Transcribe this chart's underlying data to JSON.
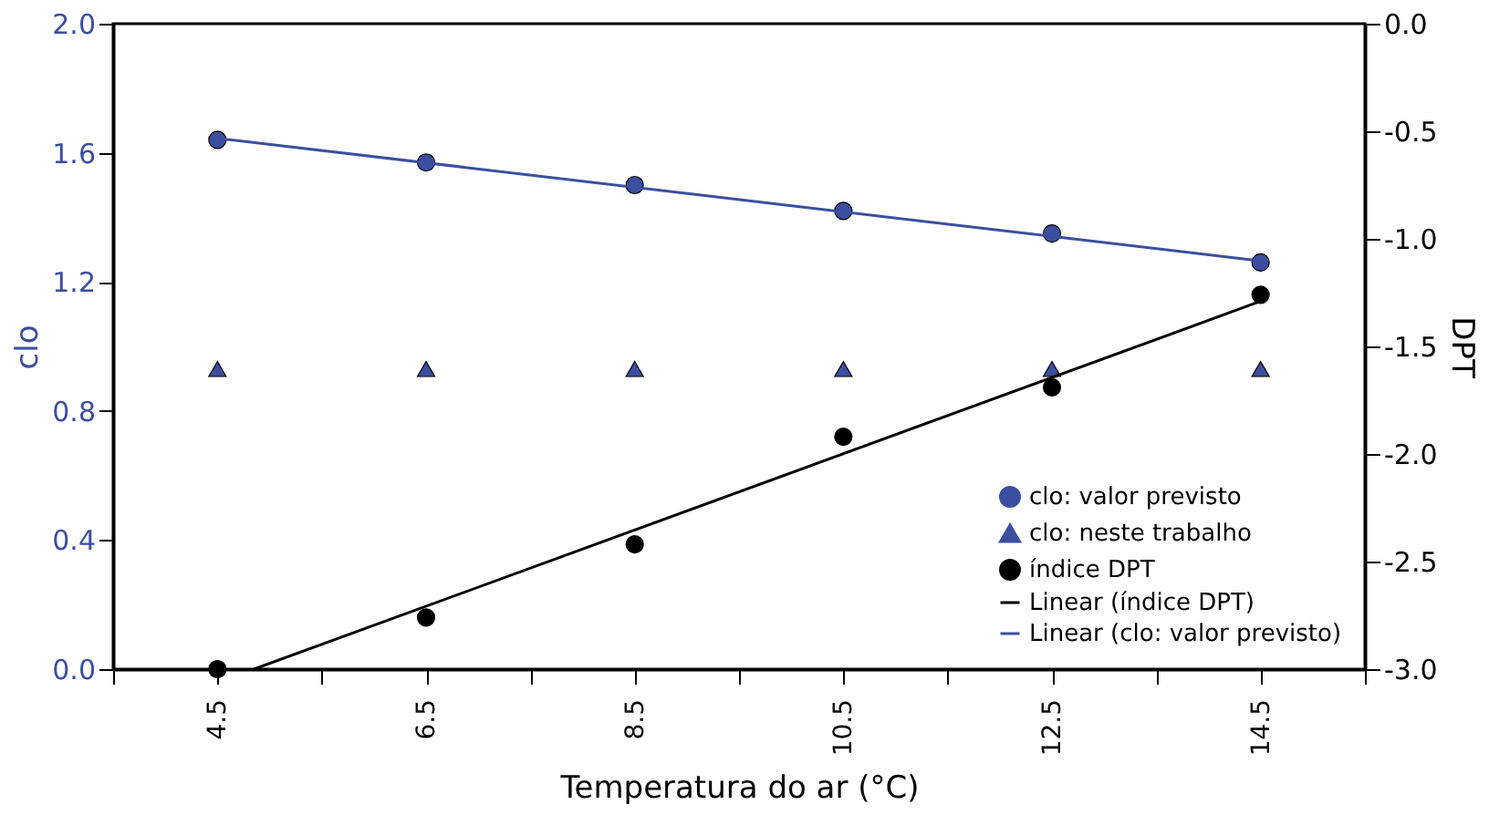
{
  "chart_data": {
    "type": "scatter",
    "xlabel": "Temperatura do ar (°C)",
    "ylabel": "clo",
    "y2label": "DPT",
    "xlim": [
      3.5,
      15.5
    ],
    "xticks": [
      {
        "value": 3.5,
        "label": null
      },
      4.5,
      {
        "value": 5.5,
        "label": null
      },
      6.5,
      {
        "value": 7.5,
        "label": null
      },
      8.5,
      {
        "value": 9.5,
        "label": null
      },
      10.5,
      {
        "value": 11.5,
        "label": null
      },
      12.5,
      {
        "value": 13.5,
        "label": null
      },
      14.5,
      {
        "value": 15.5,
        "label": null
      }
    ],
    "ylim": [
      0,
      2
    ],
    "yticks": [
      {
        "value": 0,
        "label": "0.0"
      },
      0.4,
      0.8,
      1.2,
      1.6,
      {
        "value": 2,
        "label": "2.0"
      }
    ],
    "y2lim": [
      -3,
      0
    ],
    "y2ticks": [
      {
        "value": -3,
        "label": "-3.0"
      },
      -2.5,
      {
        "value": -2,
        "label": "-2.0"
      },
      -1.5,
      {
        "value": -1,
        "label": "-1.0"
      },
      -0.5,
      {
        "value": 0,
        "label": "0.0"
      }
    ],
    "grid": false,
    "legend": "bottom right",
    "series": [
      {
        "name": "clo: valor previsto",
        "marker": "circle",
        "color": "#3b4ea0",
        "x": [
          4.5,
          6.5,
          8.5,
          10.5,
          12.5,
          14.5
        ],
        "values": [
          1.64,
          1.57,
          1.5,
          1.42,
          1.35,
          1.26
        ]
      },
      {
        "name": "clo: neste trabalho",
        "marker": "triangle",
        "color": "#3b4ea0",
        "x": [
          4.5,
          6.5,
          8.5,
          10.5,
          12.5,
          14.5
        ],
        "values": [
          0.93,
          0.93,
          0.93,
          0.93,
          0.93,
          0.93
        ]
      },
      {
        "name": "índice DPT",
        "marker": "circle",
        "color": "#000000",
        "axis": "y2",
        "x": [
          4.5,
          6.5,
          8.5,
          10.5,
          12.5,
          14.5
        ],
        "values": [
          -3.0,
          -2.76,
          -2.42,
          -1.92,
          -1.69,
          -1.26
        ]
      },
      {
        "name": "Linear (índice DPT)",
        "type": "line",
        "marker": "none",
        "color": "#000000",
        "axis": "y2",
        "x": [
          4.85,
          14.5
        ],
        "values": [
          -3.0,
          -1.29
        ]
      },
      {
        "name": "Linear (clo: valor previsto)",
        "type": "line",
        "marker": "none",
        "color": "#3b4ea0",
        "x": [
          4.5,
          14.5
        ],
        "values": [
          1.645,
          1.265
        ]
      }
    ]
  }
}
